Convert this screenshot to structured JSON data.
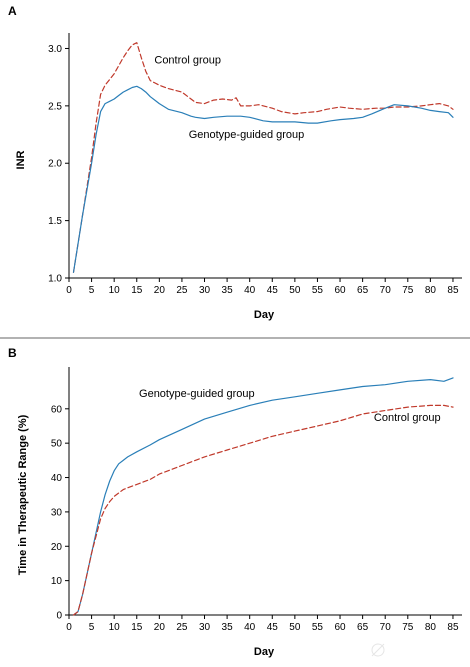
{
  "colors": {
    "control": "#c0392b",
    "genotype": "#2a7fb8",
    "axis": "#000000"
  },
  "chart_data": [
    {
      "panel": "A",
      "type": "line",
      "xlabel": "Day",
      "ylabel": "INR",
      "xlim": [
        0,
        87
      ],
      "ylim": [
        1.0,
        3.1
      ],
      "xticks": [
        0,
        5,
        10,
        15,
        20,
        25,
        30,
        35,
        40,
        45,
        50,
        55,
        60,
        65,
        70,
        75,
        80,
        85
      ],
      "yticks": [
        1.0,
        1.5,
        2.0,
        2.5,
        3.0
      ],
      "ytick_labels": [
        "1.0",
        "1.5",
        "2.0",
        "2.5",
        "3.0"
      ],
      "grid": false,
      "series": [
        {
          "name": "Control group",
          "style": "dashed",
          "color_key": "control",
          "x": [
            1,
            3,
            5,
            6,
            7,
            8,
            9,
            10,
            11,
            12,
            13,
            14,
            15,
            16,
            17,
            18,
            19,
            20,
            22,
            25,
            27,
            28,
            30,
            32,
            34,
            36,
            37,
            38,
            40,
            42,
            45,
            47,
            50,
            52,
            55,
            57,
            60,
            62,
            65,
            68,
            70,
            72,
            75,
            78,
            80,
            82,
            84,
            85
          ],
          "y": [
            1.05,
            1.55,
            2.05,
            2.35,
            2.6,
            2.68,
            2.73,
            2.78,
            2.85,
            2.92,
            2.98,
            3.03,
            3.05,
            2.92,
            2.8,
            2.72,
            2.7,
            2.68,
            2.65,
            2.62,
            2.56,
            2.53,
            2.52,
            2.55,
            2.56,
            2.55,
            2.57,
            2.5,
            2.5,
            2.51,
            2.48,
            2.45,
            2.43,
            2.44,
            2.45,
            2.47,
            2.49,
            2.48,
            2.47,
            2.48,
            2.48,
            2.49,
            2.49,
            2.5,
            2.51,
            2.52,
            2.5,
            2.47
          ]
        },
        {
          "name": "Genotype-guided group",
          "style": "solid",
          "color_key": "genotype",
          "x": [
            1,
            3,
            5,
            6,
            7,
            8,
            9,
            10,
            11,
            12,
            13,
            14,
            15,
            16,
            17,
            18,
            19,
            20,
            22,
            25,
            27,
            28,
            30,
            32,
            35,
            38,
            40,
            43,
            45,
            48,
            50,
            53,
            55,
            58,
            60,
            63,
            65,
            67,
            70,
            72,
            75,
            78,
            80,
            82,
            84,
            85
          ],
          "y": [
            1.05,
            1.55,
            2.0,
            2.25,
            2.45,
            2.52,
            2.54,
            2.56,
            2.59,
            2.62,
            2.64,
            2.66,
            2.67,
            2.65,
            2.62,
            2.58,
            2.55,
            2.52,
            2.47,
            2.44,
            2.41,
            2.4,
            2.39,
            2.4,
            2.41,
            2.41,
            2.4,
            2.37,
            2.36,
            2.36,
            2.36,
            2.35,
            2.35,
            2.37,
            2.38,
            2.39,
            2.4,
            2.43,
            2.48,
            2.51,
            2.5,
            2.48,
            2.46,
            2.45,
            2.44,
            2.4
          ]
        }
      ],
      "annotations": [
        {
          "text": "Control group",
          "series": "Control group",
          "x": 18.9,
          "y": 2.87
        },
        {
          "text": "Genotype-guided group",
          "series": "Genotype-guided group",
          "x": 26.5,
          "y": 2.22
        }
      ]
    },
    {
      "panel": "B",
      "type": "line",
      "xlabel": "Day",
      "ylabel": "Time in Therapeutic Range (%)",
      "xlim": [
        0,
        87
      ],
      "ylim": [
        0,
        71
      ],
      "xticks": [
        0,
        5,
        10,
        15,
        20,
        25,
        30,
        35,
        40,
        45,
        50,
        55,
        60,
        65,
        70,
        75,
        80,
        85
      ],
      "yticks": [
        0,
        10,
        20,
        30,
        40,
        50,
        60
      ],
      "ytick_labels": [
        "0",
        "10",
        "20",
        "30",
        "40",
        "50",
        "60"
      ],
      "grid": false,
      "series": [
        {
          "name": "Genotype-guided group",
          "style": "solid",
          "color_key": "genotype",
          "x": [
            1,
            2,
            3,
            4,
            5,
            6,
            7,
            8,
            9,
            10,
            11,
            12,
            13,
            15,
            18,
            20,
            25,
            30,
            35,
            40,
            45,
            50,
            55,
            60,
            65,
            70,
            75,
            80,
            83,
            85
          ],
          "y": [
            0,
            1,
            6,
            12,
            18,
            24,
            30,
            35,
            39,
            42,
            44,
            45,
            46,
            47.5,
            49.5,
            51,
            54,
            57,
            59,
            61,
            62.5,
            63.5,
            64.5,
            65.5,
            66.5,
            67,
            68,
            68.5,
            68,
            69
          ]
        },
        {
          "name": "Control group",
          "style": "dashed",
          "color_key": "control",
          "x": [
            1,
            2,
            3,
            4,
            5,
            6,
            7,
            8,
            9,
            10,
            11,
            12,
            13,
            15,
            18,
            20,
            25,
            30,
            35,
            40,
            45,
            50,
            55,
            60,
            65,
            70,
            75,
            80,
            83,
            85
          ],
          "y": [
            0,
            1,
            6,
            12,
            18,
            23,
            28,
            31,
            33,
            34.5,
            35.5,
            36.5,
            37,
            38,
            39.5,
            41,
            43.5,
            46,
            48,
            50,
            52,
            53.5,
            55,
            56.5,
            58.5,
            59.5,
            60.5,
            61,
            61,
            60.5
          ]
        }
      ],
      "annotations": [
        {
          "text": "Genotype-guided group",
          "series": "Genotype-guided group",
          "x": 15.5,
          "y": 63.5
        },
        {
          "text": "Control group",
          "series": "Control group",
          "x": 67.5,
          "y": 56.5
        }
      ]
    }
  ]
}
